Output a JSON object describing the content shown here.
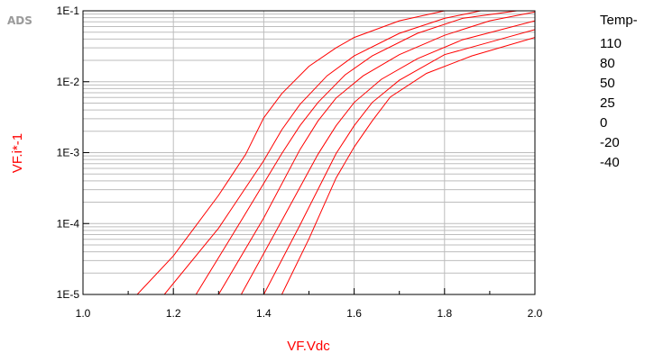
{
  "watermark": "ADS",
  "colors": {
    "series": "#ff0000",
    "axis_title": "#ff0000",
    "grid": "#bdbdbd",
    "frame": "#000000",
    "text": "#000000"
  },
  "legend": {
    "title": "Temp-",
    "entries": [
      "110",
      "80",
      "50",
      "25",
      "0",
      "-20",
      "-40"
    ]
  },
  "chart_data": {
    "type": "line",
    "xlabel": "VF.Vdc",
    "ylabel": "VF.i*-1",
    "xlim": [
      1.0,
      2.0
    ],
    "ylim": [
      1e-05,
      0.1
    ],
    "y_scale": "log",
    "grid": true,
    "legend_position": "right",
    "x_ticks": [
      {
        "value": 1.0,
        "label": "1.0"
      },
      {
        "value": 1.2,
        "label": "1.2"
      },
      {
        "value": 1.4,
        "label": "1.4"
      },
      {
        "value": 1.6,
        "label": "1.6"
      },
      {
        "value": 1.8,
        "label": "1.8"
      },
      {
        "value": 2.0,
        "label": "2.0"
      }
    ],
    "y_ticks": [
      {
        "value": 1e-05,
        "label": "1E-5"
      },
      {
        "value": 0.0001,
        "label": "1E-4"
      },
      {
        "value": 0.001,
        "label": "1E-3"
      },
      {
        "value": 0.01,
        "label": "1E-2"
      },
      {
        "value": 0.1,
        "label": "1E-1"
      }
    ],
    "series": [
      {
        "name": "110",
        "x": [
          1.12,
          1.2,
          1.3,
          1.36,
          1.4,
          1.44,
          1.5,
          1.56,
          1.6,
          1.7,
          1.8
        ],
        "y": [
          1e-05,
          3.5e-05,
          0.00025,
          0.00095,
          0.0031,
          0.0068,
          0.0165,
          0.0301,
          0.0421,
          0.0722,
          0.1
        ]
      },
      {
        "name": "80",
        "x": [
          1.18,
          1.3,
          1.4,
          1.44,
          1.48,
          1.54,
          1.6,
          1.7,
          1.8,
          1.88
        ],
        "y": [
          1e-05,
          8.6e-05,
          0.00077,
          0.0021,
          0.0048,
          0.0121,
          0.0231,
          0.0482,
          0.0783,
          0.1
        ]
      },
      {
        "name": "50",
        "x": [
          1.25,
          1.35,
          1.44,
          1.48,
          1.52,
          1.58,
          1.64,
          1.74,
          1.84,
          1.96
        ],
        "y": [
          1e-05,
          0.00011,
          0.00097,
          0.0024,
          0.0051,
          0.0125,
          0.0231,
          0.0482,
          0.0782,
          0.1
        ]
      },
      {
        "name": "25",
        "x": [
          1.3,
          1.4,
          1.48,
          1.52,
          1.56,
          1.62,
          1.7,
          1.8,
          1.9,
          2.0
        ],
        "y": [
          1e-05,
          0.00012,
          0.0011,
          0.0028,
          0.0059,
          0.0121,
          0.0241,
          0.0452,
          0.0723,
          0.0963
        ]
      },
      {
        "name": "0",
        "x": [
          1.35,
          1.44,
          1.52,
          1.56,
          1.6,
          1.66,
          1.74,
          1.84,
          2.0
        ],
        "y": [
          1e-05,
          0.00011,
          0.00095,
          0.0024,
          0.0051,
          0.0108,
          0.0211,
          0.0391,
          0.0722
        ]
      },
      {
        "name": "-20",
        "x": [
          1.4,
          1.48,
          1.56,
          1.6,
          1.64,
          1.7,
          1.8,
          1.9,
          2.0
        ],
        "y": [
          1e-05,
          9.5e-05,
          0.00097,
          0.0024,
          0.0051,
          0.0105,
          0.0241,
          0.0361,
          0.0542
        ]
      },
      {
        "name": "-40",
        "x": [
          1.44,
          1.5,
          1.56,
          1.6,
          1.64,
          1.68,
          1.76,
          1.86,
          2.0
        ],
        "y": [
          1e-05,
          6.1e-05,
          0.00044,
          0.0012,
          0.0028,
          0.0061,
          0.0131,
          0.0231,
          0.0421
        ]
      }
    ]
  }
}
